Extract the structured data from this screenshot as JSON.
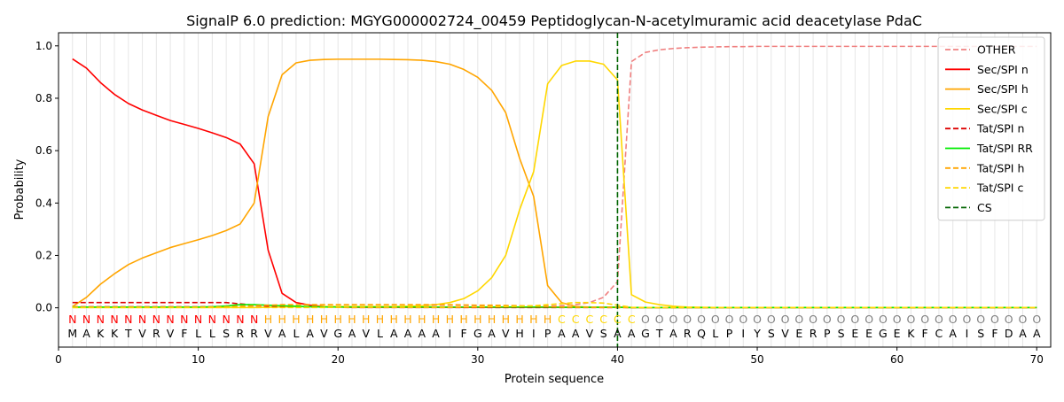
{
  "chart_data": {
    "type": "line",
    "title": "SignalP 6.0 prediction: MGYG000002724_00459 Peptidoglycan-N-acetylmuramic acid deacetylase PdaC",
    "xlabel": "Protein sequence",
    "ylabel": "Probability",
    "xlim": [
      0,
      71
    ],
    "ylim": [
      -0.15,
      1.05
    ],
    "x_ticks": [
      0,
      10,
      20,
      30,
      40,
      50,
      60,
      70
    ],
    "y_ticks": [
      0.0,
      0.2,
      0.4,
      0.6,
      0.8,
      1.0
    ],
    "x_tick_labels": [
      "0",
      "10",
      "20",
      "30",
      "40",
      "50",
      "60",
      "70"
    ],
    "y_tick_labels": [
      "0.0",
      "0.2",
      "0.4",
      "0.6",
      "0.8",
      "1.0"
    ],
    "grid": "vertical lines at every residue",
    "legend_position": "upper right",
    "sequence": "MAKKTVRVFLLSRRVALAVGAVLAAAAIFGAVHIPAAVSAAGTARQLPIYSVERPSEEGEKFCAISFDAA",
    "region_labels": "NNNNNNNNNNNNNNHHHHHHHHHHHHHHHHHHHHHCCCCCCOOOOOOOOOOOOOOOOOOOOOOOOOOOOOO",
    "region_colors": {
      "N": "#ff0000",
      "H": "#ffa500",
      "C": "#ffd700",
      "O": "#808080"
    },
    "cleavage_site": 40,
    "series": [
      {
        "name": "OTHER",
        "color": "#f08080",
        "dash": "dashed",
        "values": [
          0.005,
          0.005,
          0.005,
          0.005,
          0.005,
          0.005,
          0.005,
          0.005,
          0.005,
          0.005,
          0.005,
          0.005,
          0.005,
          0.005,
          0.005,
          0.005,
          0.005,
          0.005,
          0.005,
          0.005,
          0.005,
          0.005,
          0.005,
          0.005,
          0.005,
          0.005,
          0.005,
          0.005,
          0.005,
          0.005,
          0.005,
          0.005,
          0.005,
          0.005,
          0.006,
          0.008,
          0.012,
          0.02,
          0.04,
          0.1,
          0.94,
          0.975,
          0.985,
          0.99,
          0.993,
          0.995,
          0.996,
          0.997,
          0.997,
          0.998,
          0.998,
          0.998,
          0.998,
          0.998,
          0.998,
          0.998,
          0.998,
          0.998,
          0.998,
          0.998,
          0.998,
          0.998,
          0.998,
          0.998,
          0.998,
          0.998,
          0.998,
          0.998,
          0.998,
          0.998
        ]
      },
      {
        "name": "Sec/SPI n",
        "color": "#ff0000",
        "dash": "solid",
        "values": [
          0.95,
          0.915,
          0.86,
          0.815,
          0.78,
          0.755,
          0.735,
          0.715,
          0.7,
          0.685,
          0.668,
          0.65,
          0.625,
          0.55,
          0.22,
          0.055,
          0.02,
          0.01,
          0.005,
          0.003,
          0.002,
          0.002,
          0.002,
          0.002,
          0.002,
          0.002,
          0.002,
          0.002,
          0.002,
          0.002,
          0.002,
          0.002,
          0.002,
          0.002,
          0.002,
          0.002,
          0.002,
          0.002,
          0.002,
          0.002,
          0.001,
          0.001,
          0.001,
          0.001,
          0.001,
          0.001,
          0.001,
          0.001,
          0.001,
          0.001,
          0.001,
          0.001,
          0.001,
          0.001,
          0.001,
          0.001,
          0.001,
          0.001,
          0.001,
          0.001,
          0.001,
          0.001,
          0.001,
          0.001,
          0.001,
          0.001,
          0.001,
          0.001,
          0.001,
          0.001
        ]
      },
      {
        "name": "Sec/SPI h",
        "color": "#ffa500",
        "dash": "solid",
        "values": [
          0.005,
          0.04,
          0.09,
          0.13,
          0.165,
          0.19,
          0.21,
          0.23,
          0.245,
          0.26,
          0.276,
          0.295,
          0.32,
          0.4,
          0.73,
          0.89,
          0.935,
          0.945,
          0.948,
          0.949,
          0.949,
          0.949,
          0.949,
          0.948,
          0.947,
          0.945,
          0.94,
          0.93,
          0.91,
          0.88,
          0.83,
          0.745,
          0.57,
          0.425,
          0.085,
          0.02,
          0.005,
          0.003,
          0.002,
          0.002,
          0.001,
          0.001,
          0.001,
          0.001,
          0.001,
          0.001,
          0.001,
          0.001,
          0.001,
          0.001,
          0.001,
          0.001,
          0.001,
          0.001,
          0.001,
          0.001,
          0.001,
          0.001,
          0.001,
          0.001,
          0.001,
          0.001,
          0.001,
          0.001,
          0.001,
          0.001,
          0.001,
          0.001,
          0.001,
          0.001
        ]
      },
      {
        "name": "Sec/SPI c",
        "color": "#ffd700",
        "dash": "solid",
        "values": [
          0.001,
          0.001,
          0.001,
          0.001,
          0.001,
          0.001,
          0.001,
          0.001,
          0.001,
          0.001,
          0.001,
          0.001,
          0.001,
          0.001,
          0.002,
          0.003,
          0.004,
          0.005,
          0.005,
          0.005,
          0.005,
          0.005,
          0.005,
          0.005,
          0.006,
          0.008,
          0.012,
          0.02,
          0.035,
          0.065,
          0.115,
          0.2,
          0.375,
          0.52,
          0.855,
          0.925,
          0.942,
          0.942,
          0.93,
          0.87,
          0.05,
          0.022,
          0.012,
          0.006,
          0.003,
          0.002,
          0.001,
          0.001,
          0.001,
          0.001,
          0.001,
          0.001,
          0.001,
          0.001,
          0.001,
          0.001,
          0.001,
          0.001,
          0.001,
          0.001,
          0.001,
          0.001,
          0.001,
          0.001,
          0.001,
          0.001,
          0.001,
          0.001,
          0.001,
          0.001
        ]
      },
      {
        "name": "Tat/SPI n",
        "color": "#dd0000",
        "dash": "dashed",
        "values": [
          0.02,
          0.02,
          0.02,
          0.02,
          0.02,
          0.02,
          0.02,
          0.02,
          0.02,
          0.02,
          0.02,
          0.02,
          0.015,
          0.01,
          0.006,
          0.004,
          0.003,
          0.002,
          0.002,
          0.002,
          0.001,
          0.001,
          0.001,
          0.001,
          0.001,
          0.001,
          0.001,
          0.001,
          0.001,
          0.001,
          0.001,
          0.001,
          0.001,
          0.001,
          0.001,
          0.001,
          0.001,
          0.001,
          0.001,
          0.001,
          0.001,
          0.001,
          0.001,
          0.001,
          0.001,
          0.001,
          0.001,
          0.001,
          0.001,
          0.001,
          0.001,
          0.001,
          0.001,
          0.001,
          0.001,
          0.001,
          0.001,
          0.001,
          0.001,
          0.001,
          0.001,
          0.001,
          0.001,
          0.001,
          0.001,
          0.001,
          0.001,
          0.001,
          0.001,
          0.001
        ]
      },
      {
        "name": "Tat/SPI RR",
        "color": "#00ee00",
        "dash": "solid",
        "values": [
          0.003,
          0.003,
          0.003,
          0.003,
          0.003,
          0.003,
          0.003,
          0.003,
          0.003,
          0.003,
          0.004,
          0.007,
          0.012,
          0.012,
          0.01,
          0.008,
          0.006,
          0.004,
          0.003,
          0.003,
          0.003,
          0.003,
          0.003,
          0.003,
          0.003,
          0.003,
          0.003,
          0.003,
          0.003,
          0.003,
          0.003,
          0.003,
          0.003,
          0.003,
          0.003,
          0.002,
          0.002,
          0.002,
          0.002,
          0.002,
          0.001,
          0.001,
          0.001,
          0.001,
          0.001,
          0.001,
          0.001,
          0.001,
          0.001,
          0.001,
          0.001,
          0.001,
          0.001,
          0.001,
          0.001,
          0.001,
          0.001,
          0.001,
          0.001,
          0.001,
          0.001,
          0.001,
          0.001,
          0.001,
          0.001,
          0.001,
          0.001,
          0.001,
          0.001,
          0.001
        ]
      },
      {
        "name": "Tat/SPI h",
        "color": "#ffa500",
        "dash": "dashed",
        "values": [
          0.002,
          0.002,
          0.002,
          0.002,
          0.002,
          0.002,
          0.002,
          0.002,
          0.002,
          0.002,
          0.003,
          0.004,
          0.006,
          0.008,
          0.01,
          0.012,
          0.012,
          0.012,
          0.012,
          0.012,
          0.012,
          0.012,
          0.012,
          0.012,
          0.012,
          0.012,
          0.012,
          0.012,
          0.011,
          0.01,
          0.01,
          0.009,
          0.008,
          0.007,
          0.005,
          0.003,
          0.002,
          0.002,
          0.001,
          0.001,
          0.001,
          0.001,
          0.001,
          0.001,
          0.001,
          0.001,
          0.001,
          0.001,
          0.001,
          0.001,
          0.001,
          0.001,
          0.001,
          0.001,
          0.001,
          0.001,
          0.001,
          0.001,
          0.001,
          0.001,
          0.001,
          0.001,
          0.001,
          0.001,
          0.001,
          0.001,
          0.001,
          0.001,
          0.001,
          0.001
        ]
      },
      {
        "name": "Tat/SPI c",
        "color": "#ffd700",
        "dash": "dashed",
        "values": [
          0.001,
          0.001,
          0.001,
          0.001,
          0.001,
          0.001,
          0.001,
          0.001,
          0.001,
          0.001,
          0.001,
          0.001,
          0.001,
          0.001,
          0.001,
          0.001,
          0.001,
          0.001,
          0.001,
          0.002,
          0.002,
          0.002,
          0.002,
          0.002,
          0.002,
          0.002,
          0.002,
          0.002,
          0.003,
          0.003,
          0.004,
          0.005,
          0.006,
          0.008,
          0.012,
          0.016,
          0.02,
          0.02,
          0.018,
          0.01,
          0.002,
          0.001,
          0.001,
          0.001,
          0.001,
          0.001,
          0.001,
          0.001,
          0.001,
          0.001,
          0.001,
          0.001,
          0.001,
          0.001,
          0.001,
          0.001,
          0.001,
          0.001,
          0.001,
          0.001,
          0.001,
          0.001,
          0.001,
          0.001,
          0.001,
          0.001,
          0.001,
          0.001,
          0.001,
          0.001
        ]
      },
      {
        "name": "CS",
        "color": "#006400",
        "dash": "dashed",
        "values": []
      }
    ]
  }
}
